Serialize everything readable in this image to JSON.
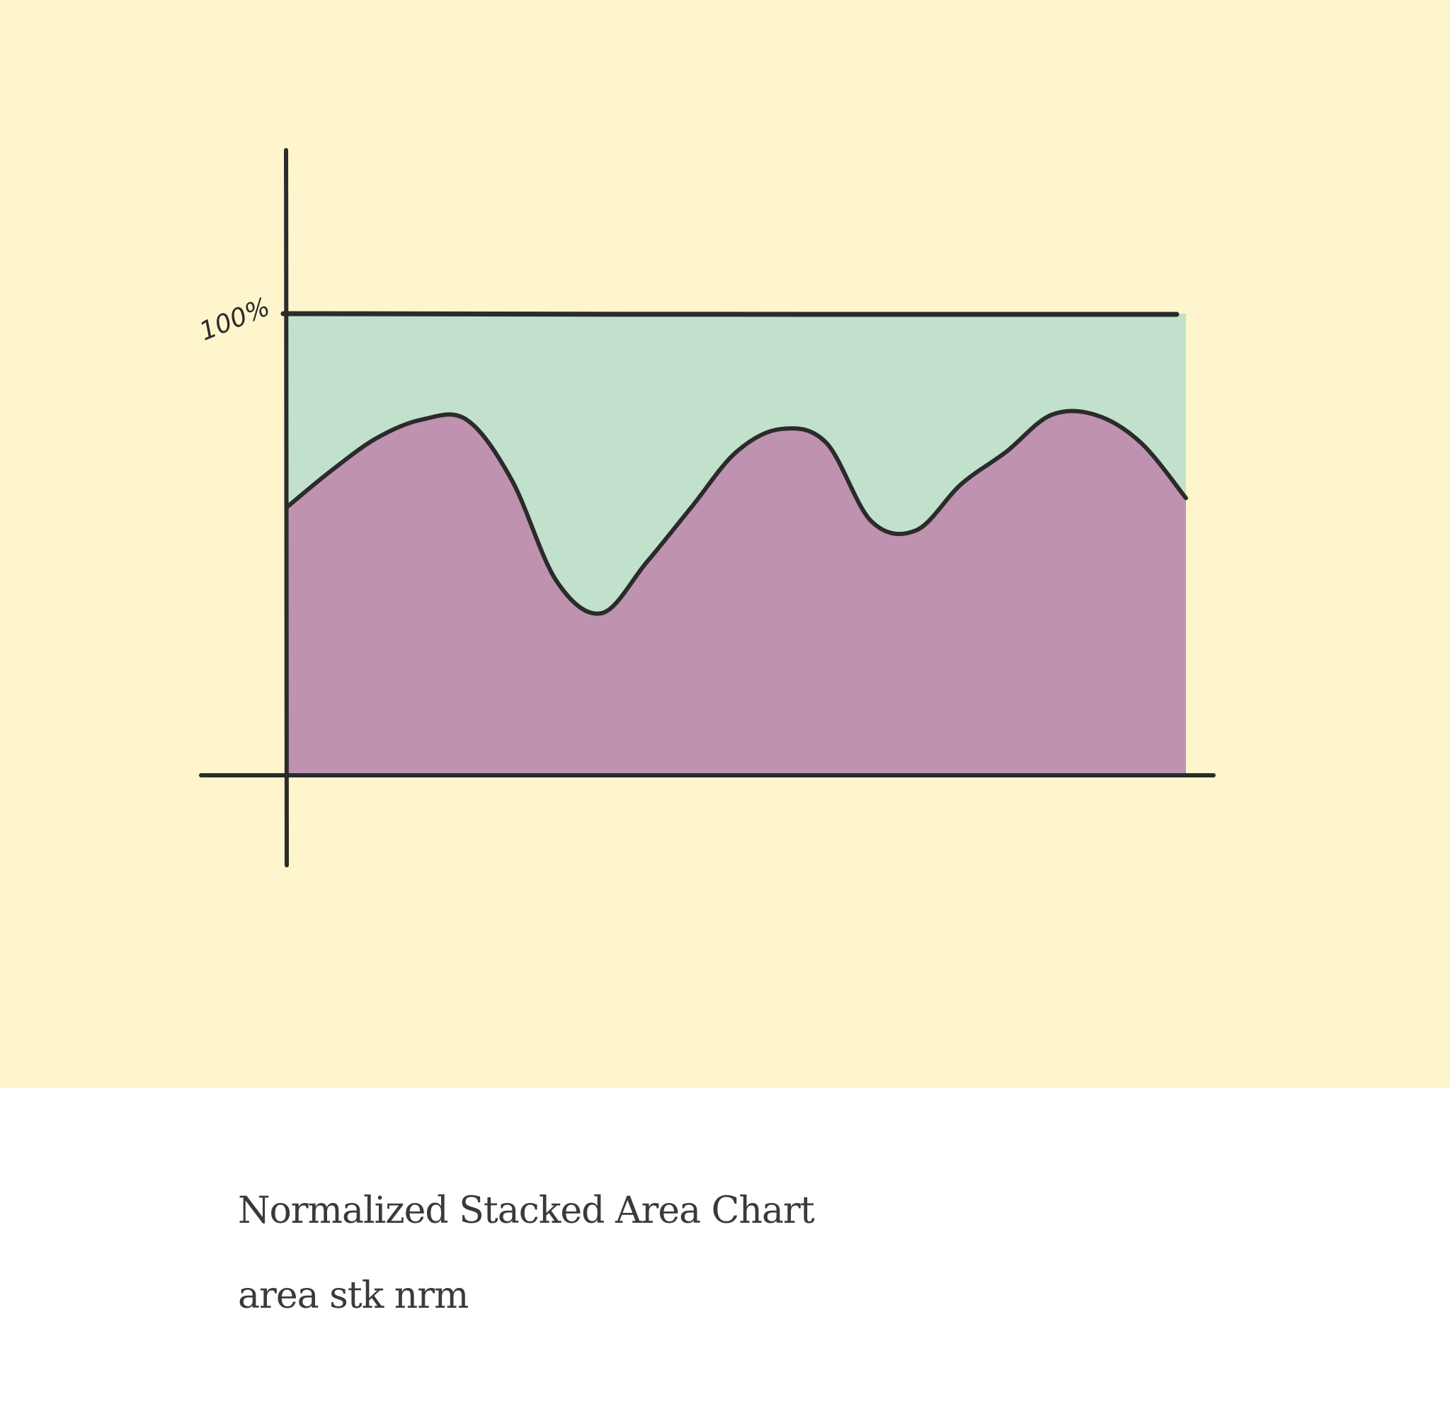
{
  "chart_data": {
    "type": "area",
    "stacked": true,
    "normalized": true,
    "y_tick_label": "100%",
    "ylim": [
      0,
      100
    ],
    "x": [
      0,
      0.5,
      1,
      1.5,
      2,
      2.5,
      3,
      3.5,
      4,
      4.5,
      5,
      5.5,
      6,
      6.5,
      7,
      7.5,
      8,
      8.5,
      9,
      9.5,
      10
    ],
    "series": [
      {
        "values": [
          58,
          66,
          73,
          77,
          77,
          64,
          42,
          35,
          46,
          58,
          70,
          75,
          72,
          55,
          53,
          63,
          70,
          78,
          78,
          72,
          60
        ],
        "color": "#bf92b0"
      },
      {
        "values": [
          42,
          34,
          27,
          23,
          23,
          36,
          58,
          65,
          54,
          42,
          30,
          25,
          28,
          45,
          47,
          37,
          30,
          22,
          22,
          28,
          40
        ],
        "color": "#c2e1cc"
      }
    ],
    "grid": false,
    "legend": "none"
  },
  "caption": {
    "title": "Normalized Stacked Area Chart",
    "subtitle": "area stk nrm"
  },
  "colors": {
    "background": "#fef5cc",
    "ink": "#2b2b2b"
  }
}
